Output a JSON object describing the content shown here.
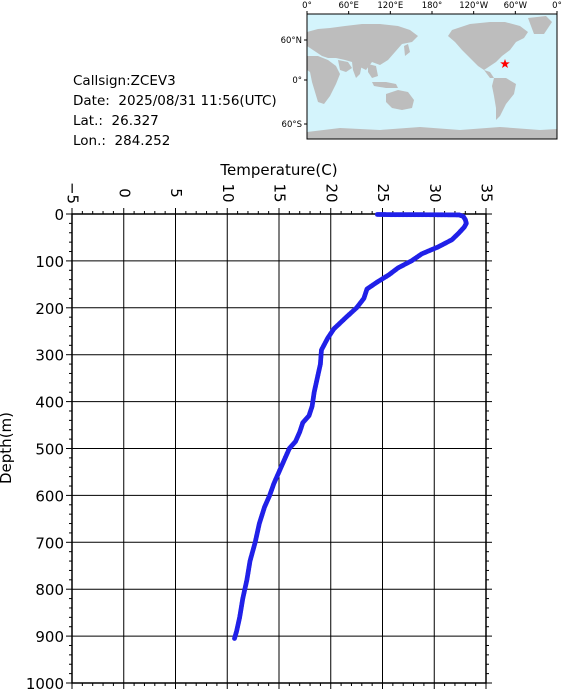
{
  "info": {
    "callsign": "Callsign:ZCEV3",
    "date": "Date:  2025/08/31 11:56(UTC)",
    "lat": "Lat.:  26.327",
    "lon": "Lon.:  284.252"
  },
  "map": {
    "top_labels": [
      "0°",
      "60°E",
      "120°E",
      "180°",
      "120°W",
      "60°W",
      "0°"
    ],
    "left_labels": [
      "60°N",
      "0°",
      "60°S"
    ],
    "ocean_color": "#d4f4fc",
    "land_color": "#bdbdbd",
    "marker_color": "#ff0000",
    "marker_icon": "star-icon"
  },
  "chart_data": {
    "type": "scatter",
    "title": "",
    "xlabel": "Temperature(C)",
    "ylabel": "Depth(m)",
    "xlim": [
      -5,
      35
    ],
    "ylim": [
      1000,
      0
    ],
    "x_ticks": [
      -5,
      0,
      5,
      10,
      15,
      20,
      25,
      30,
      35
    ],
    "y_ticks": [
      0,
      100,
      200,
      300,
      400,
      500,
      600,
      700,
      800,
      900,
      1000
    ],
    "grid": true,
    "color": "#2020e8",
    "profile": [
      [
        24.5,
        1
      ],
      [
        26,
        1.5
      ],
      [
        29,
        1.5
      ],
      [
        32.4,
        2
      ],
      [
        32.8,
        5
      ],
      [
        33.0,
        12
      ],
      [
        33.1,
        20
      ],
      [
        32.9,
        28
      ],
      [
        32.4,
        40
      ],
      [
        31.7,
        55
      ],
      [
        30.4,
        70
      ],
      [
        28.8,
        85
      ],
      [
        27.8,
        100
      ],
      [
        26.5,
        115
      ],
      [
        25.6,
        130
      ],
      [
        24.5,
        145
      ],
      [
        23.5,
        160
      ],
      [
        23.2,
        180
      ],
      [
        22.5,
        200
      ],
      [
        21.5,
        220
      ],
      [
        20.3,
        245
      ],
      [
        19.7,
        265
      ],
      [
        19.1,
        290
      ],
      [
        19.0,
        320
      ],
      [
        18.7,
        350
      ],
      [
        18.4,
        380
      ],
      [
        18.2,
        410
      ],
      [
        17.9,
        430
      ],
      [
        17.3,
        445
      ],
      [
        17.0,
        465
      ],
      [
        16.6,
        485
      ],
      [
        16.0,
        500
      ],
      [
        15.6,
        520
      ],
      [
        15.1,
        545
      ],
      [
        14.5,
        575
      ],
      [
        14.1,
        600
      ],
      [
        13.6,
        625
      ],
      [
        13.1,
        660
      ],
      [
        12.7,
        700
      ],
      [
        12.2,
        740
      ],
      [
        11.9,
        780
      ],
      [
        11.5,
        820
      ],
      [
        11.2,
        860
      ],
      [
        10.9,
        890
      ],
      [
        10.7,
        905
      ]
    ]
  }
}
